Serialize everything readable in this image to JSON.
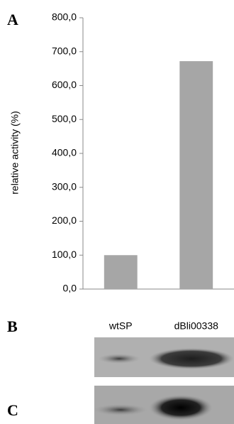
{
  "chart_data": {
    "type": "bar",
    "panel_labels": [
      "A",
      "B",
      "C"
    ],
    "y_label": "relative activity (%)",
    "categories": [
      "wtSP",
      "dBli00338"
    ],
    "values": [
      100,
      672
    ],
    "color": "#a6a6a6",
    "ylim": [
      0,
      800
    ],
    "yticks": [
      {
        "value": 0,
        "label": "0,0"
      },
      {
        "value": 100,
        "label": "100,0"
      },
      {
        "value": 200,
        "label": "200,0"
      },
      {
        "value": 300,
        "label": "300,0"
      },
      {
        "value": 400,
        "label": "400,0"
      },
      {
        "value": 500,
        "label": "500,0"
      },
      {
        "value": 600,
        "label": "600,0"
      },
      {
        "value": 700,
        "label": "700,0"
      },
      {
        "value": 800,
        "label": "800,0"
      }
    ],
    "grid": false
  }
}
